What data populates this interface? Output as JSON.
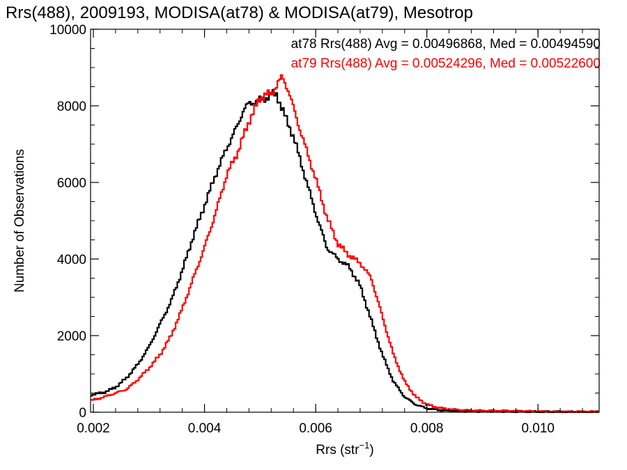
{
  "chart_data": {
    "type": "line",
    "title": "Rrs(488), 2009193, MODISA(at78) & MODISA(at79), Mesotrop",
    "xlabel": "Rrs (str",
    "xlabel_sup": "−1",
    "xlabel_close": ")",
    "ylabel": "Number of Observations",
    "xlim": [
      0.00195,
      0.0111
    ],
    "ylim": [
      0,
      10000
    ],
    "x_ticks": [
      0.002,
      0.004,
      0.006,
      0.008,
      0.01
    ],
    "x_tick_labels": [
      "0.002",
      "0.004",
      "0.006",
      "0.008",
      "0.010"
    ],
    "y_ticks": [
      0,
      2000,
      4000,
      6000,
      8000,
      10000
    ],
    "y_tick_labels": [
      "0",
      "2000",
      "4000",
      "6000",
      "8000",
      "10000"
    ],
    "grid": false,
    "legend_position": "top-right",
    "annotations": [
      {
        "text": "at78 Rrs(488) Avg = 0.00496868, Med = 0.00494590",
        "color": "#000000"
      },
      {
        "text": "at79 Rrs(488) Avg = 0.00524296, Med = 0.00522600",
        "color": "#ff0000"
      }
    ],
    "series": [
      {
        "color": "#000000",
        "x": [
          0.00195,
          0.0022,
          0.0024,
          0.0026,
          0.0028,
          0.003,
          0.0032,
          0.0034,
          0.0036,
          0.0038,
          0.004,
          0.0042,
          0.0044,
          0.0046,
          0.0047,
          0.0048,
          0.0049,
          0.005,
          0.0051,
          0.0052,
          0.0053,
          0.0054,
          0.0056,
          0.0058,
          0.006,
          0.0062,
          0.0064,
          0.0066,
          0.0068,
          0.007,
          0.0072,
          0.0074,
          0.0076,
          0.0078,
          0.008,
          0.0082,
          0.0084,
          0.0086,
          0.009,
          0.0095,
          0.01,
          0.0105,
          0.0111
        ],
        "y": [
          450,
          520,
          650,
          900,
          1250,
          1700,
          2300,
          2900,
          3700,
          4600,
          5400,
          6200,
          6900,
          7500,
          7900,
          8050,
          8100,
          8150,
          8200,
          8300,
          8300,
          7900,
          7200,
          6200,
          5200,
          4300,
          4000,
          3800,
          3300,
          2400,
          1500,
          800,
          400,
          200,
          100,
          60,
          40,
          30,
          20,
          15,
          10,
          10,
          10
        ]
      },
      {
        "color": "#ff0000",
        "x": [
          0.00195,
          0.0022,
          0.0024,
          0.0026,
          0.0028,
          0.003,
          0.0032,
          0.0034,
          0.0036,
          0.0038,
          0.004,
          0.0042,
          0.0044,
          0.0046,
          0.0048,
          0.005,
          0.0051,
          0.0052,
          0.0053,
          0.0054,
          0.0055,
          0.0056,
          0.0058,
          0.006,
          0.0062,
          0.0064,
          0.0066,
          0.0068,
          0.007,
          0.0072,
          0.0074,
          0.0076,
          0.0078,
          0.008,
          0.0082,
          0.0084,
          0.0086,
          0.009,
          0.0095,
          0.01,
          0.0105,
          0.0111
        ],
        "y": [
          300,
          400,
          500,
          600,
          850,
          1150,
          1500,
          2000,
          2700,
          3500,
          4300,
          5200,
          6200,
          6800,
          7600,
          8200,
          8300,
          8300,
          8550,
          8750,
          8450,
          7950,
          7000,
          6100,
          5100,
          4400,
          4100,
          3900,
          3500,
          2500,
          1500,
          800,
          400,
          200,
          120,
          80,
          60,
          40,
          30,
          20,
          10,
          10
        ]
      }
    ]
  }
}
